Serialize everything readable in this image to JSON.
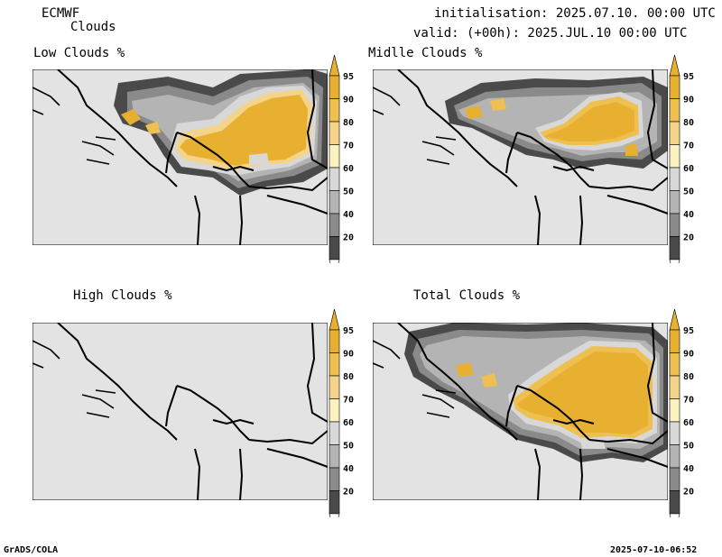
{
  "header": {
    "model": "ECMWF",
    "product": "Clouds",
    "init": "initialisation: 2025.07.10. 00:00 UTC",
    "valid": "valid: (+00h): 2025.JUL.10 00:00 UTC"
  },
  "panels": [
    {
      "title": "Low Clouds %"
    },
    {
      "title": "Midlle Clouds %"
    },
    {
      "title": "High Clouds %"
    },
    {
      "title": "Total Clouds %"
    }
  ],
  "colorbar": {
    "labels": [
      "95",
      "90",
      "80",
      "70",
      "60",
      "50",
      "40",
      "20"
    ],
    "colors": {
      "c95": "#e8b030",
      "c90": "#eec052",
      "c80": "#f4d48a",
      "c70": "#fbf2c0",
      "c60": "#d8d8d8",
      "c50": "#b4b4b4",
      "c40": "#8a8a8a",
      "c20": "#4a4a4a",
      "below": "#ffffff"
    }
  },
  "footer": {
    "left": "GrADS/COLA",
    "right": "2025-07-10-06:52"
  }
}
